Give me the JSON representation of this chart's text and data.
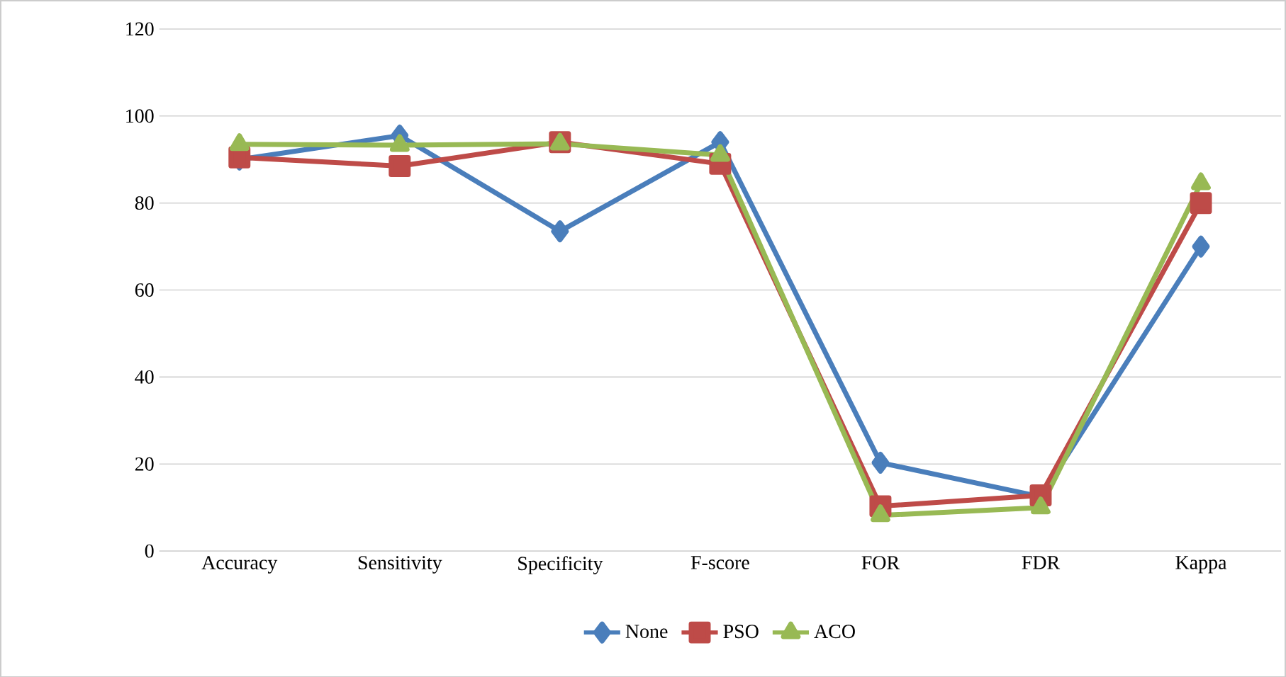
{
  "chart_data": {
    "type": "line",
    "categories": [
      "Accuracy",
      "Sensitivity",
      "Specificity",
      "F-score",
      "FOR",
      "FDR",
      "Kappa"
    ],
    "series": [
      {
        "name": "None",
        "color": "#4a7ebb",
        "marker": "diamond",
        "values": [
          90,
          95.5,
          73.5,
          94,
          20.3,
          12.5,
          70
        ]
      },
      {
        "name": "PSO",
        "color": "#be4b48",
        "marker": "square",
        "values": [
          90.5,
          88.5,
          94,
          89,
          10.3,
          12.8,
          80
        ]
      },
      {
        "name": "ACO",
        "color": "#98b954",
        "marker": "triangle",
        "values": [
          93.5,
          93.3,
          93.6,
          91,
          8.2,
          10,
          84.5
        ]
      }
    ],
    "ylim": [
      0,
      120
    ],
    "yticks": [
      0,
      20,
      40,
      60,
      80,
      100,
      120
    ],
    "grid": "y",
    "legend": "bottom"
  }
}
